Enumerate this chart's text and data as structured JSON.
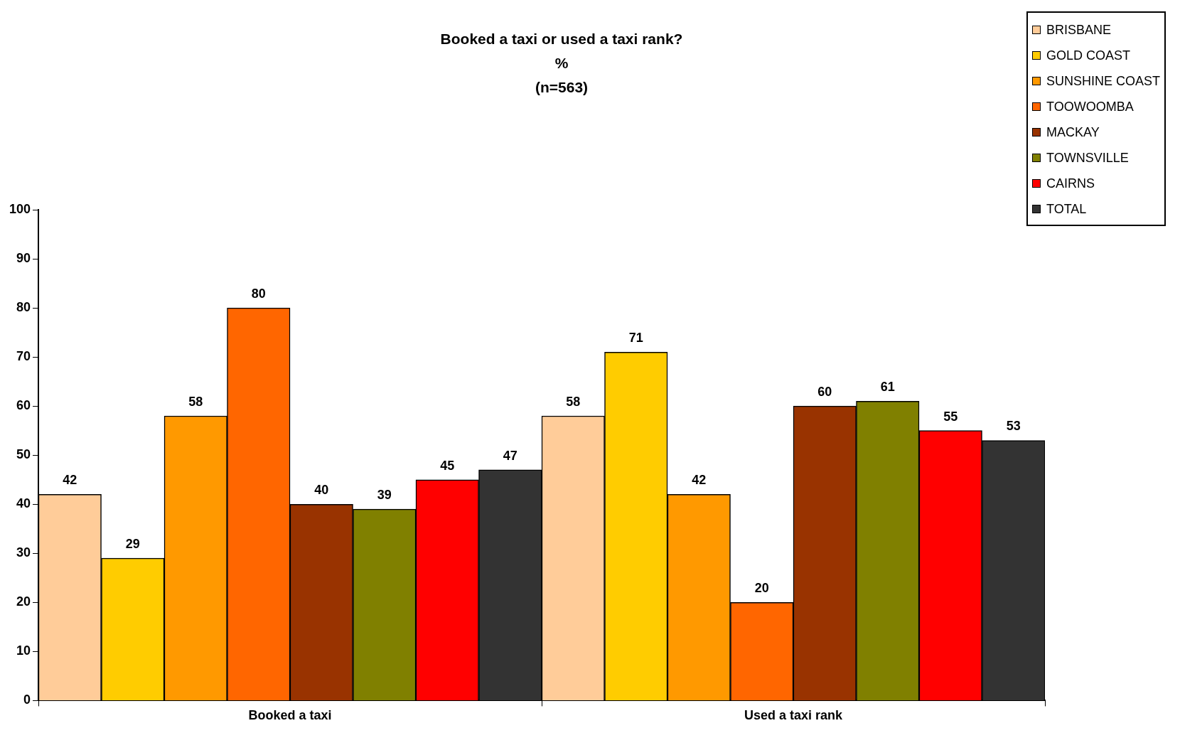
{
  "chart_data": {
    "type": "bar",
    "title": "Booked a taxi or used a taxi rank?",
    "subtitle": "%\n(n=563)",
    "categories": [
      "Booked a taxi",
      "Used a taxi rank"
    ],
    "series": [
      {
        "name": "BRISBANE",
        "color": "#ffcc99",
        "values": [
          42,
          58
        ]
      },
      {
        "name": "GOLD COAST",
        "color": "#ffcc00",
        "values": [
          29,
          71
        ]
      },
      {
        "name": "SUNSHINE COAST",
        "color": "#ff9900",
        "values": [
          58,
          42
        ]
      },
      {
        "name": "TOOWOOMBA",
        "color": "#ff6600",
        "values": [
          80,
          20
        ]
      },
      {
        "name": "MACKAY",
        "color": "#993300",
        "values": [
          40,
          60
        ]
      },
      {
        "name": "TOWNSVILLE",
        "color": "#808000",
        "values": [
          39,
          61
        ]
      },
      {
        "name": "CAIRNS",
        "color": "#ff0000",
        "values": [
          45,
          55
        ]
      },
      {
        "name": "TOTAL",
        "color": "#333333",
        "values": [
          47,
          53
        ]
      }
    ],
    "ylim": [
      0,
      100
    ],
    "yticks": [
      0,
      10,
      20,
      30,
      40,
      50,
      60,
      70,
      80,
      90,
      100
    ],
    "grid": false,
    "legend": "top right",
    "data_labels": true
  }
}
